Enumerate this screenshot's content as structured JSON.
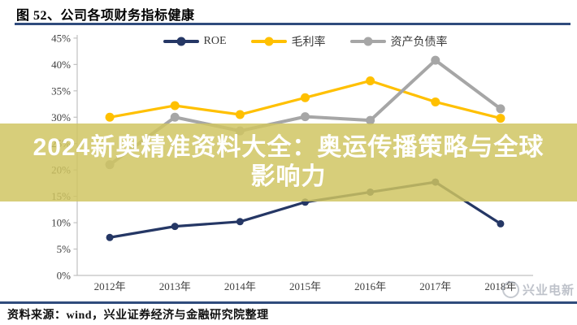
{
  "header": {
    "title": "图 52、公司各项财务指标健康"
  },
  "overlay": {
    "line1": "2024新奥精准资料大全：奥运传播策略与全球",
    "line2": "影响力",
    "background": "#CFC560",
    "text_color": "#FFFFFF"
  },
  "watermark": {
    "label": "兴业电新"
  },
  "footer": {
    "source": "资料来源：wind，兴业证券经济与金融研究院整理"
  },
  "colors": {
    "accent_rule": "#2F4B7C",
    "axis": "#C0C0C0",
    "tick_label": "#404040"
  },
  "chart_data": {
    "type": "line",
    "title": "公司各项财务指标健康",
    "categories": [
      "2012年",
      "2013年",
      "2014年",
      "2015年",
      "2016年",
      "2017年",
      "2018年"
    ],
    "series": [
      {
        "name": "ROE",
        "color": "#253765",
        "dot_r": 4.5,
        "width": 3.2,
        "values": [
          7.2,
          9.3,
          10.2,
          13.9,
          15.8,
          17.7,
          9.8
        ]
      },
      {
        "name": "毛利率",
        "color": "#FFC000",
        "dot_r": 5.5,
        "width": 3.2,
        "values": [
          30.0,
          32.2,
          30.5,
          33.7,
          36.9,
          32.9,
          29.8
        ]
      },
      {
        "name": "资产负债率",
        "color": "#A6A6A6",
        "dot_r": 5.5,
        "width": 4.0,
        "values": [
          21.0,
          30.0,
          27.4,
          30.1,
          29.4,
          40.8,
          31.6
        ]
      }
    ],
    "xlabel": "",
    "ylabel": "",
    "ylim": [
      0,
      45
    ],
    "ytick_step": 5,
    "ytick_labels": [
      "0%",
      "5%",
      "10%",
      "15%",
      "20%",
      "25%",
      "30%",
      "35%",
      "40%",
      "45%"
    ],
    "legend_position": "top",
    "grid": false
  }
}
